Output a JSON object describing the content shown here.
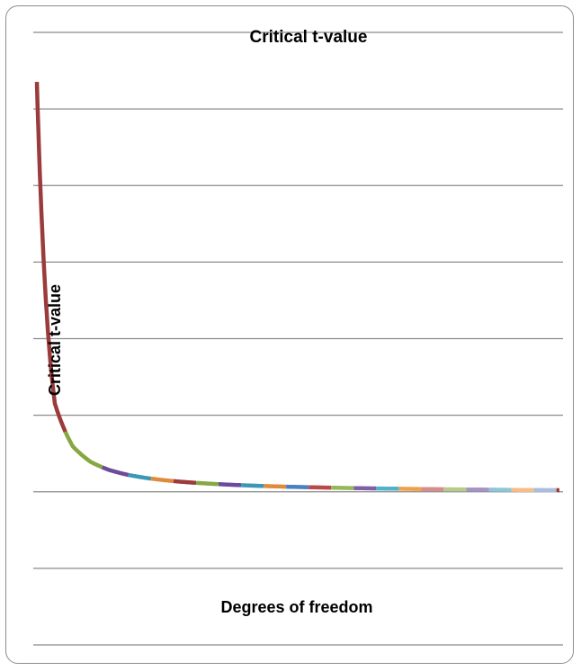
{
  "chart_data": {
    "type": "line",
    "title": "Critical t-value",
    "xlabel": "Degrees of freedom",
    "ylabel": "Critical t-value",
    "x": [
      1,
      2,
      3,
      4,
      5,
      6,
      7,
      8,
      9,
      10,
      11,
      12,
      13,
      14,
      15,
      16,
      17,
      18,
      19,
      20,
      21,
      22,
      23,
      24,
      25,
      26,
      27,
      28,
      29,
      30
    ],
    "y": [
      12.706,
      4.303,
      3.182,
      2.776,
      2.571,
      2.447,
      2.365,
      2.306,
      2.262,
      2.228,
      2.201,
      2.179,
      2.16,
      2.145,
      2.131,
      2.12,
      2.11,
      2.101,
      2.093,
      2.086,
      2.08,
      2.074,
      2.069,
      2.064,
      2.06,
      2.056,
      2.052,
      2.048,
      2.045,
      2.042
    ],
    "xlim": [
      0.8,
      30.3
    ],
    "ylim": [
      -2,
      14
    ],
    "grid": true,
    "gridlines": [
      -2,
      0,
      2,
      4,
      6,
      8,
      10,
      12,
      14
    ],
    "show_tick_labels": false,
    "segment_colors": [
      "#9b3b3b",
      "#86a843",
      "#6e4a9a",
      "#3b98b5",
      "#e08a3c",
      "#9b3b3b",
      "#86a843",
      "#6e4a9a",
      "#3b98b5",
      "#e08a3c",
      "#4a7fc0",
      "#b94a4a",
      "#96b85a",
      "#7f5fa8",
      "#4fb2c9",
      "#f0a04a",
      "#d98c8c",
      "#b5cc8a",
      "#a894c4",
      "#8fc6d8",
      "#f5bd88",
      "#a9bede"
    ]
  }
}
